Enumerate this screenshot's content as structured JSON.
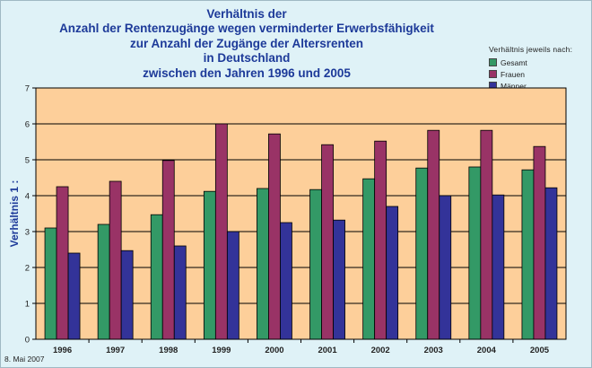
{
  "chart_data": {
    "type": "bar",
    "title_lines": [
      "Verhältnis der",
      "Anzahl der Rentenzugänge wegen verminderter Erwerbsfähigkeit",
      "zur Anzahl der Zugänge der Altersrenten",
      "in Deutschland",
      "zwischen den Jahren 1996 und 2005"
    ],
    "ylabel": "Verhältnis 1 :",
    "xlabel": "",
    "ylim": [
      0,
      7
    ],
    "yticks": [
      0,
      1,
      2,
      3,
      4,
      5,
      6,
      7
    ],
    "grid": true,
    "legend": {
      "heading": "Verhältnis jeweils nach:",
      "placement": "top-right"
    },
    "categories": [
      "1996",
      "1997",
      "1998",
      "1999",
      "2000",
      "2001",
      "2002",
      "2003",
      "2004",
      "2005"
    ],
    "series": [
      {
        "name": "Gesamt",
        "color": "#339966",
        "values": [
          3.1,
          3.2,
          3.47,
          4.12,
          4.2,
          4.17,
          4.47,
          4.77,
          4.8,
          4.72
        ]
      },
      {
        "name": "Frauen",
        "color": "#993366",
        "values": [
          4.25,
          4.4,
          4.98,
          6.0,
          5.72,
          5.42,
          5.52,
          5.82,
          5.82,
          5.37
        ]
      },
      {
        "name": "Männer",
        "color": "#333399",
        "values": [
          2.4,
          2.47,
          2.6,
          3.0,
          3.25,
          3.32,
          3.7,
          4.0,
          4.02,
          4.22
        ]
      }
    ],
    "colors": {
      "plot_background": "#fdcf9a",
      "page_background": "#dff2f7",
      "title": "#1d3a99"
    }
  },
  "footer_text": "8. Mai 2007"
}
